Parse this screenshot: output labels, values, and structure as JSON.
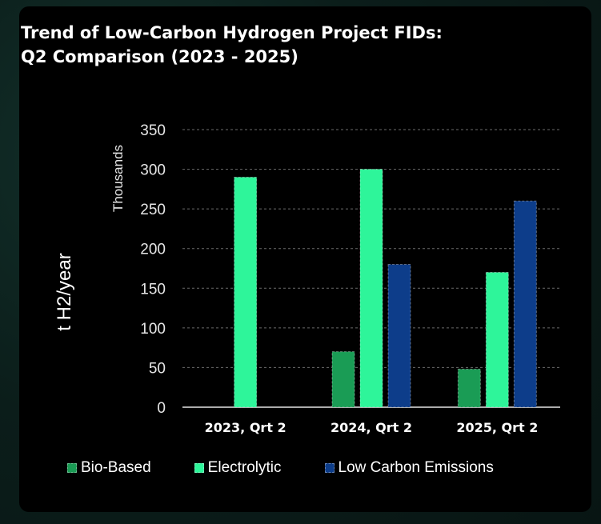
{
  "chart_data": {
    "type": "bar",
    "title": "Trend of Low-Carbon Hydrogen Project FIDs:",
    "subtitle": "Q2 Comparison (2023 - 2025)",
    "ylabel": "t H2/year",
    "yunit_label": "Thousands",
    "ylim": [
      0,
      350
    ],
    "yticks": [
      0,
      50,
      100,
      150,
      200,
      250,
      300,
      350
    ],
    "categories": [
      "2023, Qrt 2",
      "2024, Qrt 2",
      "2025, Qrt 2"
    ],
    "series": [
      {
        "name": "Bio-Based",
        "color": "#1a9c55",
        "values": [
          0,
          70,
          48
        ]
      },
      {
        "name": "Electrolytic",
        "color": "#2ef59a",
        "values": [
          290,
          300,
          170
        ]
      },
      {
        "name": "Low Carbon Emissions",
        "color": "#0d3d8a",
        "values": [
          0,
          180,
          260
        ]
      }
    ],
    "grid": true,
    "legend_position": "bottom"
  }
}
